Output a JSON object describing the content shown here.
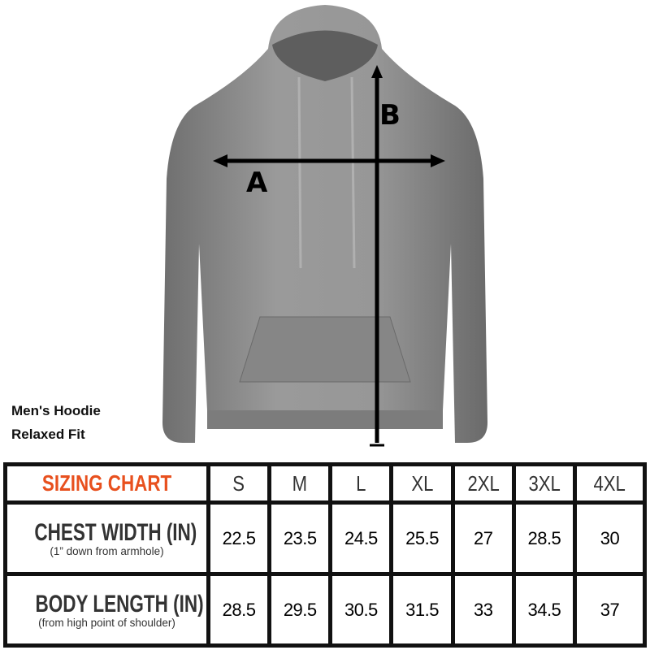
{
  "product": {
    "name": "Men's Hoodie",
    "fit": "Relaxed Fit"
  },
  "measure_labels": {
    "a": "A",
    "b": "B"
  },
  "colors": {
    "title": "#e8501e",
    "hoodie": "#8c8c8c",
    "border": "#111111"
  },
  "table": {
    "title": "SIZING CHART",
    "sizes": [
      "S",
      "M",
      "L",
      "XL",
      "2XL",
      "3XL",
      "4XL"
    ],
    "rows": [
      {
        "label": "CHEST WIDTH (IN)",
        "sub": "(1” down from armhole)",
        "values": [
          "22.5",
          "23.5",
          "24.5",
          "25.5",
          "27",
          "28.5",
          "30"
        ]
      },
      {
        "label": "BODY LENGTH (IN)",
        "sub": "(from high point of shoulder)",
        "values": [
          "28.5",
          "29.5",
          "30.5",
          "31.5",
          "33",
          "34.5",
          "37"
        ]
      }
    ]
  }
}
